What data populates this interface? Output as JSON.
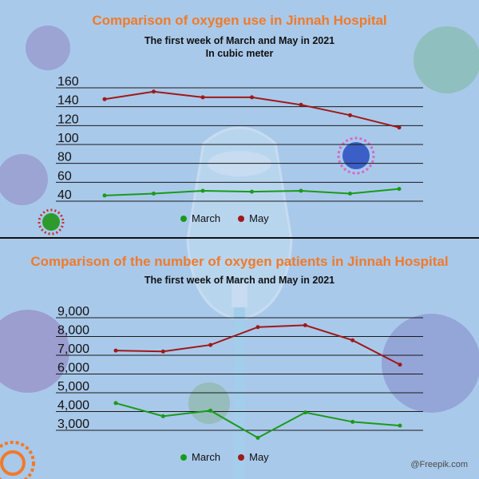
{
  "chart_data": [
    {
      "type": "line",
      "title": "Comparison of oxygen use in Jinnah Hospital",
      "subtitle": "The first week of March and May in 2021",
      "unit_note": "In cubic meter",
      "yticks": [
        40,
        60,
        80,
        100,
        120,
        140,
        160
      ],
      "ylim": [
        40,
        160
      ],
      "grid": true,
      "legend_position": "bottom",
      "x": [
        1,
        2,
        3,
        4,
        5,
        6,
        7
      ],
      "series": [
        {
          "name": "March",
          "color": "#1a9a1a",
          "values": [
            46,
            48,
            51,
            50,
            51,
            48,
            53
          ]
        },
        {
          "name": "May",
          "color": "#a01818",
          "values": [
            148,
            156,
            150,
            150,
            142,
            131,
            118
          ]
        }
      ]
    },
    {
      "type": "line",
      "title": "Comparison of the number of oxygen patients in Jinnah Hospital",
      "subtitle": "The first week of March and May in 2021",
      "yticks": [
        "3,000",
        "4,000",
        "5,000",
        "6,000",
        "7,000",
        "8,000",
        "9,000"
      ],
      "ylim": [
        3000,
        9000
      ],
      "grid": true,
      "legend_position": "bottom",
      "x": [
        1,
        2,
        3,
        4,
        5,
        6,
        7
      ],
      "series": [
        {
          "name": "March",
          "color": "#1a9a1a",
          "values": [
            4450,
            3750,
            4050,
            2600,
            3950,
            3450,
            3250
          ]
        },
        {
          "name": "May",
          "color": "#a01818",
          "values": [
            7250,
            7200,
            7550,
            8500,
            8600,
            7800,
            6500
          ]
        }
      ]
    }
  ],
  "credit": "@Freepik.com",
  "decor": {
    "background": "#a9c9ea",
    "icons": [
      "virus-icon",
      "oxygen-mask-icon"
    ]
  }
}
